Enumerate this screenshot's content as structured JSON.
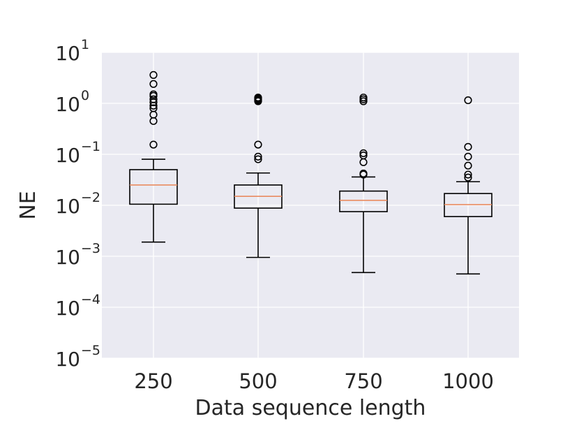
{
  "chart_data": {
    "type": "box",
    "xlabel": "Data sequence length",
    "ylabel": "NE",
    "yscale": "log",
    "ylim": [
      1e-05,
      10
    ],
    "grid": true,
    "categories": [
      "250",
      "500",
      "750",
      "1000"
    ],
    "y_ticks": [
      {
        "base": "10",
        "exp": "1",
        "value": 10
      },
      {
        "base": "10",
        "exp": "0",
        "value": 1
      },
      {
        "base": "10",
        "exp": "−1",
        "value": 0.1
      },
      {
        "base": "10",
        "exp": "−2",
        "value": 0.01
      },
      {
        "base": "10",
        "exp": "−3",
        "value": 0.001
      },
      {
        "base": "10",
        "exp": "−4",
        "value": 0.0001
      },
      {
        "base": "10",
        "exp": "−5",
        "value": 1e-05
      }
    ],
    "boxes": [
      {
        "category": "250",
        "whisker_low": 0.0019,
        "q1": 0.0105,
        "median": 0.025,
        "q3": 0.05,
        "whisker_high": 0.08,
        "outliers": [
          0.155,
          0.45,
          0.6,
          0.8,
          0.9,
          1.05,
          1.2,
          1.4,
          1.5,
          2.4,
          3.6
        ]
      },
      {
        "category": "500",
        "whisker_low": 0.00095,
        "q1": 0.0088,
        "median": 0.015,
        "q3": 0.025,
        "whisker_high": 0.043,
        "outliers": [
          0.08,
          0.09,
          0.155,
          1.1,
          1.15,
          1.2,
          1.25,
          1.3
        ]
      },
      {
        "category": "750",
        "whisker_low": 0.00048,
        "q1": 0.0075,
        "median": 0.0125,
        "q3": 0.019,
        "whisker_high": 0.036,
        "outliers": [
          0.04,
          0.042,
          0.07,
          0.095,
          0.105,
          1.1,
          1.2,
          1.3
        ]
      },
      {
        "category": "1000",
        "whisker_low": 0.00045,
        "q1": 0.006,
        "median": 0.0103,
        "q3": 0.017,
        "whisker_high": 0.029,
        "outliers": [
          0.035,
          0.04,
          0.06,
          0.09,
          0.14,
          1.15
        ]
      }
    ],
    "colors": {
      "plot_background": "#eaeaf2",
      "grid": "#ffffff",
      "box": "#000000",
      "median": "#e98b60",
      "text": "#262626"
    }
  }
}
